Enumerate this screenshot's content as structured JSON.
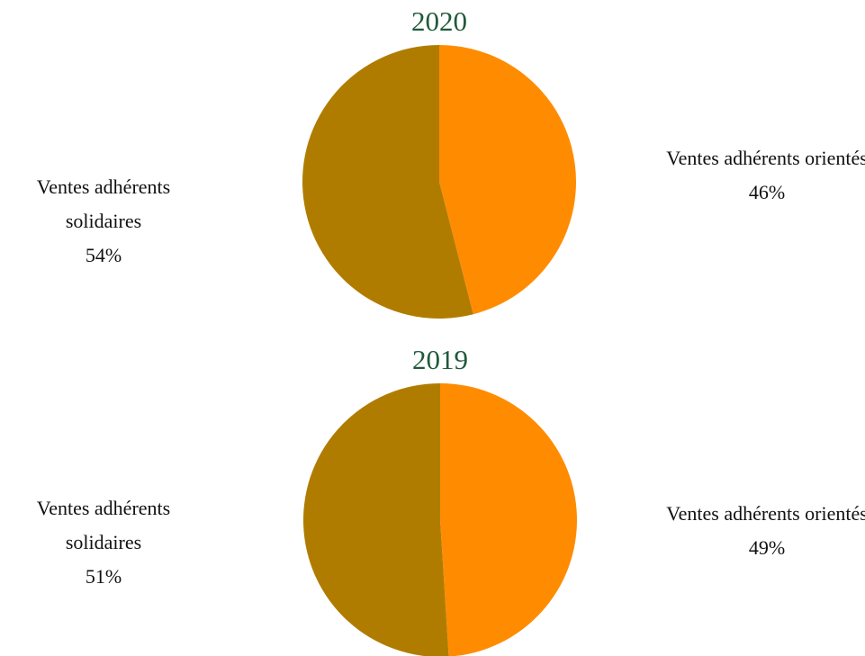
{
  "chart_data": [
    {
      "type": "pie",
      "title": "2020",
      "categories": [
        "Ventes adhérents orientés",
        "Ventes adhérents solidaires"
      ],
      "values": [
        46,
        54
      ],
      "value_labels": [
        "46%",
        "54%"
      ],
      "colors": [
        "#ff8c00",
        "#b07c00"
      ]
    },
    {
      "type": "pie",
      "title": "2019",
      "categories": [
        "Ventes adhérents orientés",
        "Ventes adhérents solidaires"
      ],
      "values": [
        49,
        51
      ],
      "value_labels": [
        "49%",
        "51%"
      ],
      "colors": [
        "#ff8c00",
        "#b07c00"
      ]
    }
  ]
}
